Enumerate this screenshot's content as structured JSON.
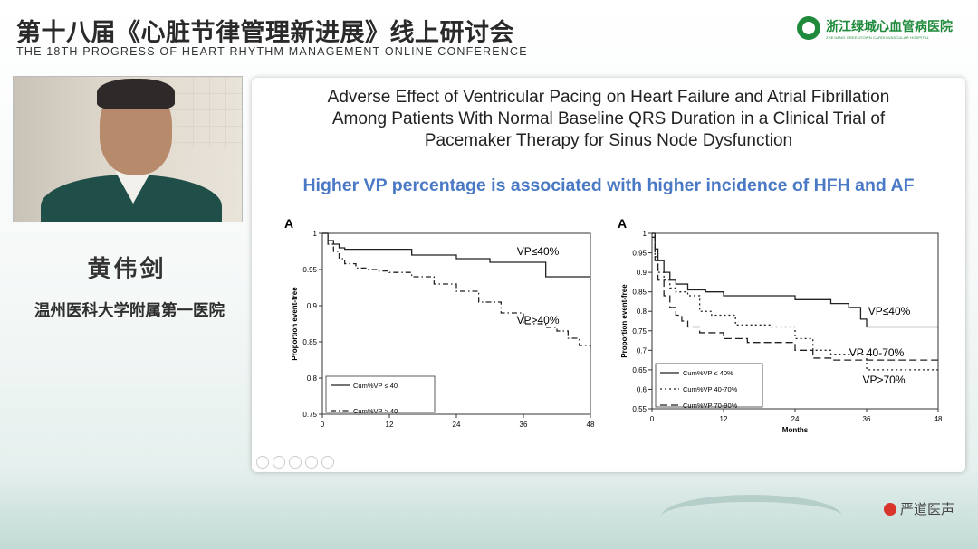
{
  "header": {
    "title_cn": "第十八届《心脏节律管理新进展》线上研讨会",
    "title_en": "THE 18TH PROGRESS OF HEART RHYTHM MANAGEMENT ONLINE CONFERENCE"
  },
  "hospital": {
    "name_cn": "浙江绿城心血管病医院",
    "name_en": "ZHEJIANG GREENTOWN CARDIOVASCULAR HOSPITAL"
  },
  "speaker": {
    "name": "黄伟剑",
    "affiliation": "温州医科大学附属第一医院"
  },
  "slide": {
    "title_lines": [
      "Adverse Effect of Ventricular Pacing on Heart Failure and Atrial Fibrillation",
      "Among Patients With Normal Baseline QRS Duration in a Clinical Trial of",
      "Pacemaker Therapy for Sinus Node Dysfunction"
    ],
    "subtitle": "Higher VP percentage is associated with higher incidence of HFH and AF"
  },
  "brand": {
    "name": "严道医声"
  },
  "colors": {
    "subtitle": "#4a79c5",
    "hospital_green": "#1f8a3b",
    "brand_red": "#d8342a"
  },
  "chart_data": [
    {
      "type": "line",
      "panel_label": "A",
      "ylabel": "Proportion event-free",
      "xlabel": "",
      "xlim": [
        0,
        48
      ],
      "ylim": [
        0.75,
        1.0
      ],
      "x_ticks": [
        0,
        12,
        24,
        36,
        48
      ],
      "y_ticks": [
        0.75,
        0.8,
        0.85,
        0.9,
        0.95,
        1
      ],
      "y_tick_labels": [
        "0.75",
        "0.8",
        "0.85",
        "0.9",
        "0.95",
        "1"
      ],
      "series": [
        {
          "name": "Cum%VP ≤ 40",
          "style": "solid",
          "x": [
            0,
            1,
            2,
            3,
            4,
            6,
            8,
            12,
            16,
            20,
            24,
            30,
            36,
            40,
            48
          ],
          "y": [
            1.0,
            0.99,
            0.985,
            0.98,
            0.978,
            0.978,
            0.978,
            0.978,
            0.97,
            0.97,
            0.965,
            0.96,
            0.96,
            0.94,
            0.94
          ]
        },
        {
          "name": "Cum%VP > 40",
          "style": "dash-dot",
          "x": [
            0,
            1,
            2,
            3,
            4,
            6,
            8,
            10,
            12,
            16,
            20,
            24,
            28,
            32,
            36,
            40,
            42,
            44,
            46,
            48
          ],
          "y": [
            1.0,
            0.985,
            0.975,
            0.965,
            0.958,
            0.952,
            0.95,
            0.948,
            0.946,
            0.94,
            0.93,
            0.92,
            0.905,
            0.89,
            0.875,
            0.87,
            0.865,
            0.855,
            0.845,
            0.842
          ]
        }
      ],
      "annotations": [
        "VP≤40%",
        "VP>40%"
      ]
    },
    {
      "type": "line",
      "panel_label": "A",
      "ylabel": "Proportion event-free",
      "xlabel": "Months",
      "xlim": [
        0,
        48
      ],
      "ylim": [
        0.55,
        1.0
      ],
      "x_ticks": [
        0,
        12,
        24,
        36,
        48
      ],
      "y_ticks": [
        0.55,
        0.6,
        0.65,
        0.7,
        0.75,
        0.8,
        0.85,
        0.9,
        0.95,
        1
      ],
      "y_tick_labels": [
        "0.55",
        "0.6",
        "0.65",
        "0.7",
        "0.75",
        "0.8",
        "0.85",
        "0.9",
        "0.95",
        "1"
      ],
      "series": [
        {
          "name": "Cum%VP ≤ 40%",
          "style": "solid",
          "x": [
            0,
            0.5,
            1,
            2,
            3,
            4,
            6,
            9,
            12,
            18,
            24,
            30,
            33,
            35,
            36,
            40,
            48
          ],
          "y": [
            1.0,
            0.96,
            0.93,
            0.9,
            0.88,
            0.87,
            0.855,
            0.85,
            0.84,
            0.84,
            0.83,
            0.82,
            0.81,
            0.78,
            0.76,
            0.76,
            0.76
          ]
        },
        {
          "name": "Cum%VP 40-70%",
          "style": "dotted",
          "x": [
            0,
            0.5,
            1,
            2,
            3,
            4,
            6,
            8,
            10,
            14,
            20,
            24,
            27,
            30,
            36,
            48
          ],
          "y": [
            1.0,
            0.94,
            0.9,
            0.88,
            0.86,
            0.85,
            0.84,
            0.8,
            0.79,
            0.765,
            0.76,
            0.73,
            0.7,
            0.69,
            0.65,
            0.65
          ]
        },
        {
          "name": "Cum%VP 70-90%",
          "style": "dashed",
          "x": [
            0,
            0.5,
            1,
            2,
            3,
            4,
            5,
            6,
            8,
            12,
            16,
            20,
            24,
            27,
            30,
            36,
            48
          ],
          "y": [
            0.99,
            0.93,
            0.88,
            0.84,
            0.81,
            0.79,
            0.775,
            0.76,
            0.745,
            0.73,
            0.72,
            0.72,
            0.7,
            0.68,
            0.675,
            0.675,
            0.675
          ]
        }
      ],
      "annotations": [
        "VP≤40%",
        "VP 40-70%",
        "VP>70%"
      ]
    }
  ]
}
